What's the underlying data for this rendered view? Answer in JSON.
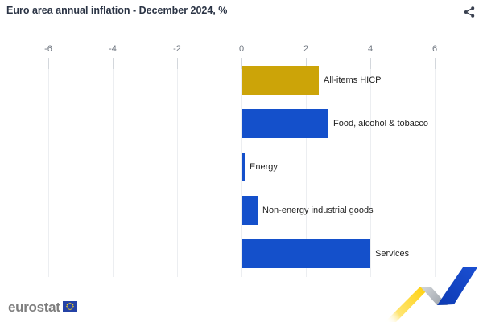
{
  "header": {
    "title": "Euro area annual inflation - December 2024, %",
    "share_icon": "share-icon"
  },
  "chart_data": {
    "type": "bar",
    "orientation": "horizontal",
    "title": "Euro area annual inflation - December 2024, %",
    "categories": [
      "All-items HICP",
      "Food, alcohol & tobacco",
      "Energy",
      "Non-energy industrial goods",
      "Services"
    ],
    "values": [
      2.4,
      2.7,
      0.1,
      0.5,
      4.0
    ],
    "bar_colors": [
      "#CCA408",
      "#1450CB",
      "#1450CB",
      "#1450CB",
      "#1450CB"
    ],
    "xlabel": "",
    "ylabel": "",
    "xlim": [
      -7,
      7
    ],
    "x_ticks": [
      -6,
      -4,
      -2,
      0,
      2,
      4,
      6
    ],
    "x_tick_labels": [
      "-6",
      "-4",
      "-2",
      "0",
      "2",
      "4",
      "6"
    ],
    "grid": true,
    "legend_position": "none",
    "value_labels_shown": false
  },
  "footer": {
    "brand_text": "eurostat"
  },
  "colors": {
    "accent_gold": "#CCA408",
    "accent_blue": "#1450CB",
    "title_text": "#2B3445",
    "tick_text": "#6F7680",
    "label_text": "#1F1F1F",
    "gridline": "#ECEEF1",
    "tick_mark": "#D3D7DC",
    "brand_gray": "#7E7E7E",
    "logo_yellow": "#FFD617",
    "logo_blue": "#1546C8",
    "background": "#FFFFFF"
  }
}
